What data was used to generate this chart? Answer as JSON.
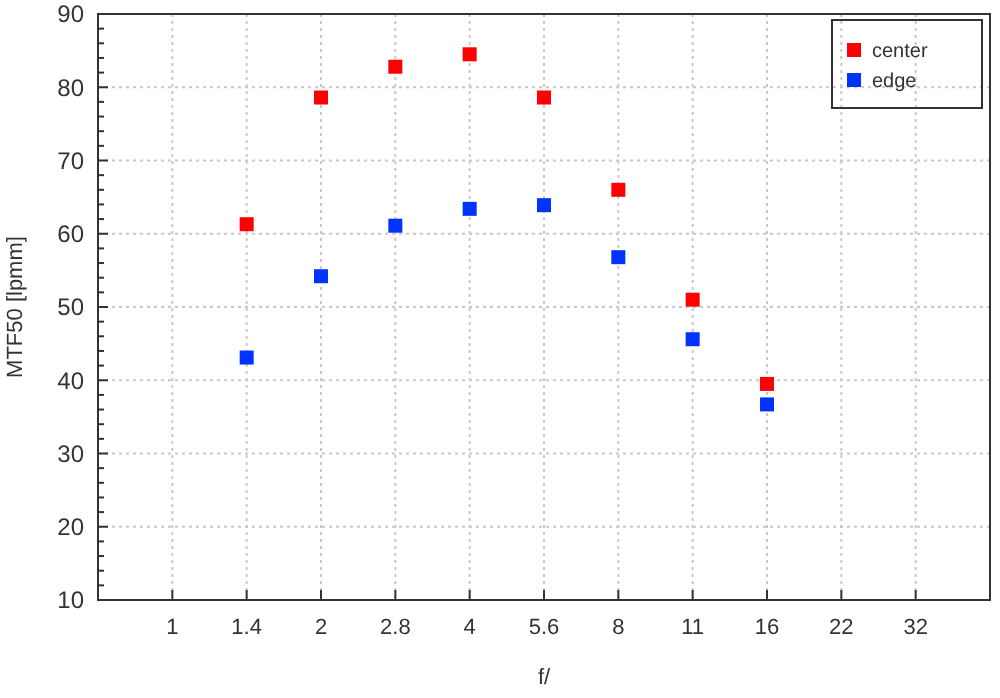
{
  "chart_data": {
    "type": "scatter",
    "xlabel": "f/",
    "ylabel": "MTF50 [lpmm]",
    "categories": [
      "1",
      "1.4",
      "2",
      "2.8",
      "4",
      "5.6",
      "8",
      "11",
      "16",
      "22",
      "32"
    ],
    "series": [
      {
        "name": "center",
        "color": "#ff0000",
        "values": [
          null,
          61.3,
          78.6,
          82.8,
          84.5,
          78.6,
          66,
          51,
          39.5,
          null,
          null
        ]
      },
      {
        "name": "edge",
        "color": "#0033ff",
        "values": [
          null,
          43.1,
          54.2,
          61.1,
          63.4,
          63.9,
          56.8,
          45.6,
          36.7,
          null,
          null
        ]
      }
    ],
    "ylim": [
      10,
      90
    ],
    "yticks": [
      10,
      20,
      30,
      40,
      50,
      60,
      70,
      80,
      90
    ],
    "grid": true,
    "legend": "top right",
    "marker": "square"
  }
}
